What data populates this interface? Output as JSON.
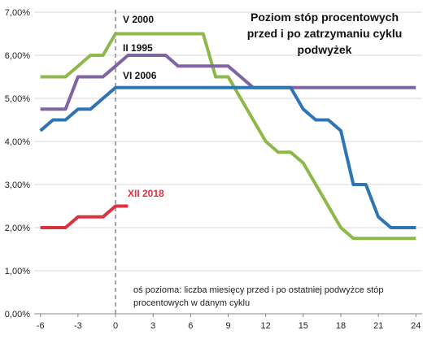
{
  "chart_data": {
    "type": "line",
    "title_lines": [
      "Poziom stóp procentowych",
      "przed i po zatrzymaniu cyklu",
      "podwyżek"
    ],
    "note_lines": [
      "oś pozioma: liczba miesięcy przed i po ostatniej podwyżce stóp",
      "procentowych w danym cyklu"
    ],
    "x_ticks": [
      "-6",
      "-3",
      "0",
      "3",
      "6",
      "9",
      "12",
      "15",
      "18",
      "21",
      "24"
    ],
    "x_tick_values": [
      -6,
      -3,
      0,
      3,
      6,
      9,
      12,
      15,
      18,
      21,
      24
    ],
    "y_ticks": [
      "0,00%",
      "1,00%",
      "2,00%",
      "3,00%",
      "4,00%",
      "5,00%",
      "6,00%",
      "7,00%"
    ],
    "y_tick_values": [
      0,
      1,
      2,
      3,
      4,
      5,
      6,
      7
    ],
    "xlim": [
      -6.5,
      24.5
    ],
    "ylim": [
      0,
      7
    ],
    "grid": "horizontal",
    "vertical_reference_line_x": 0,
    "series": [
      {
        "name": "V 2000",
        "color": "#8DB84A",
        "x": [
          -6,
          -5,
          -4,
          -3,
          -2,
          -1,
          0,
          1,
          2,
          3,
          4,
          5,
          6,
          7,
          8,
          9,
          10,
          11,
          12,
          13,
          14,
          15,
          16,
          17,
          18,
          19,
          20,
          21,
          22,
          23,
          24
        ],
        "values": [
          5.5,
          5.5,
          5.5,
          5.75,
          6.0,
          6.0,
          6.5,
          6.5,
          6.5,
          6.5,
          6.5,
          6.5,
          6.5,
          6.5,
          5.5,
          5.5,
          5.0,
          4.5,
          4.0,
          3.75,
          3.75,
          3.5,
          3.0,
          2.5,
          2.0,
          1.75,
          1.75,
          1.75,
          1.75,
          1.75,
          1.75
        ]
      },
      {
        "name": "II 1995",
        "color": "#8064A2",
        "x": [
          -6,
          -5,
          -4,
          -3,
          -2,
          -1,
          0,
          1,
          2,
          3,
          4,
          5,
          6,
          7,
          8,
          9,
          10,
          11,
          12,
          13,
          14,
          15,
          16,
          17,
          18,
          19,
          20,
          21,
          22,
          23,
          24
        ],
        "values": [
          4.75,
          4.75,
          4.75,
          5.5,
          5.5,
          5.5,
          5.75,
          6.0,
          6.0,
          6.0,
          6.0,
          5.75,
          5.75,
          5.75,
          5.75,
          5.75,
          5.5,
          5.25,
          5.25,
          5.25,
          5.25,
          5.25,
          5.25,
          5.25,
          5.25,
          5.25,
          5.25,
          5.25,
          5.25,
          5.25,
          5.25
        ]
      },
      {
        "name": "VI 2006",
        "color": "#2E75B6",
        "x": [
          -6,
          -5,
          -4,
          -3,
          -2,
          -1,
          0,
          1,
          2,
          3,
          4,
          5,
          6,
          7,
          8,
          9,
          10,
          11,
          12,
          13,
          14,
          15,
          16,
          17,
          18,
          19,
          20,
          21,
          22,
          23,
          24
        ],
        "values": [
          4.25,
          4.5,
          4.5,
          4.75,
          4.75,
          5.0,
          5.25,
          5.25,
          5.25,
          5.25,
          5.25,
          5.25,
          5.25,
          5.25,
          5.25,
          5.25,
          5.25,
          5.25,
          5.25,
          5.25,
          5.25,
          4.75,
          4.5,
          4.5,
          4.25,
          3.0,
          3.0,
          2.25,
          2.0,
          2.0,
          2.0
        ]
      },
      {
        "name": "XII 2018",
        "color": "#D9333F",
        "x": [
          -6,
          -5,
          -4,
          -3,
          -2,
          -1,
          0,
          1
        ],
        "values": [
          2.0,
          2.0,
          2.0,
          2.25,
          2.25,
          2.25,
          2.5,
          2.5
        ]
      }
    ]
  }
}
